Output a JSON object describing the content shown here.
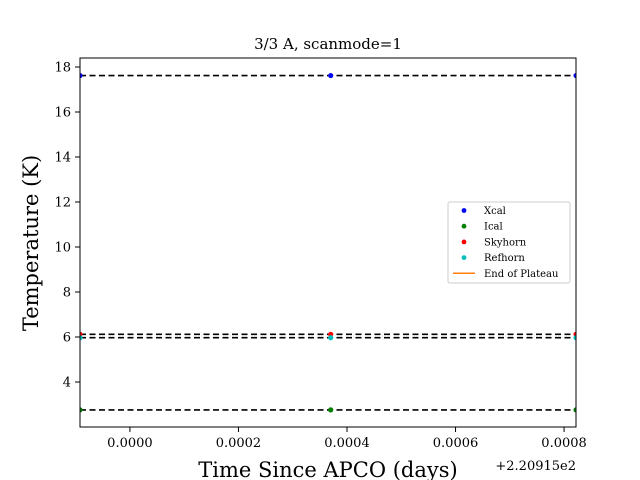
{
  "chart_data": {
    "type": "scatter",
    "title": "3/3 A, scanmode=1",
    "xlabel": "Time Since APCO (days)",
    "ylabel": "Temperature (K)",
    "x_offset_label": "+2.20915e2",
    "xlim": [
      -9.2e-06,
      8.2e-06
    ],
    "ylim": [
      2.0,
      18.4
    ],
    "x_tick_values": [
      0.0,
      0.0002,
      0.0004,
      0.0006,
      0.0008
    ],
    "x_tick_labels": [
      "0.0000",
      "0.0002",
      "0.0004",
      "0.0006",
      "0.0008"
    ],
    "y_tick_values": [
      4,
      6,
      8,
      10,
      12,
      14,
      16,
      18
    ],
    "y_tick_labels": [
      "4",
      "6",
      "8",
      "10",
      "12",
      "14",
      "16",
      "18"
    ],
    "x": [
      -9.2e-05,
      0.00037,
      0.000822
    ],
    "series": [
      {
        "name": "Xcal",
        "color": "#0000ff",
        "values": [
          17.62,
          17.62,
          17.62
        ],
        "plateau": 17.62
      },
      {
        "name": "Ical",
        "color": "#008000",
        "values": [
          2.76,
          2.76,
          2.76
        ],
        "plateau": 2.76
      },
      {
        "name": "Skyhorn",
        "color": "#ff0000",
        "values": [
          6.12,
          6.12,
          6.12
        ],
        "plateau": 6.12
      },
      {
        "name": "Refhorn",
        "color": "#00bfbf",
        "values": [
          5.97,
          5.97,
          5.97
        ],
        "plateau": 5.97
      }
    ],
    "end_of_plateau": {
      "name": "End of Plateau",
      "color": "#ff7f0e"
    },
    "legend_position": "center-right",
    "grid": false
  }
}
